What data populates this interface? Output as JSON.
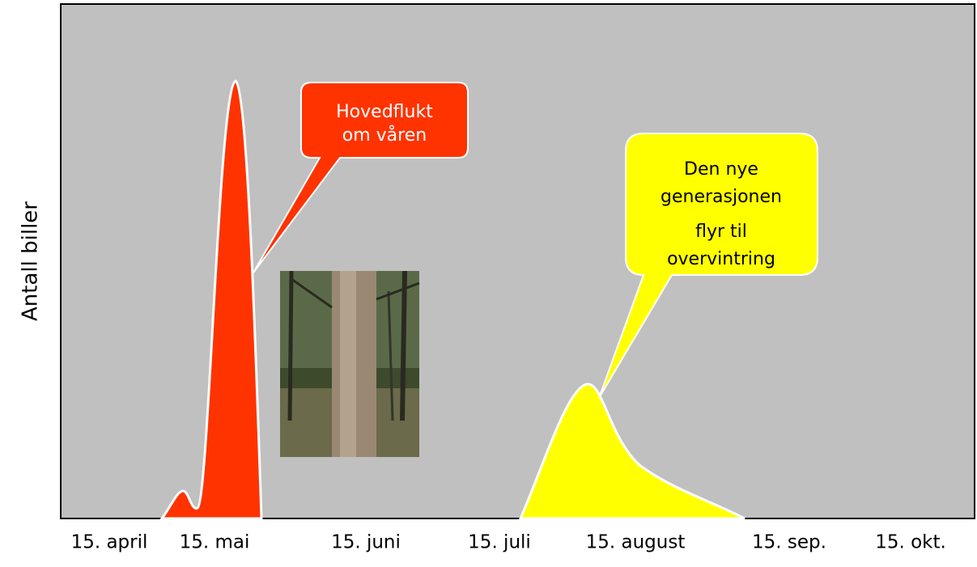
{
  "y_axis_label": "Antall biller",
  "x_labels": [
    "15. april",
    "15. mai",
    "15. juni",
    "15. juli",
    "15. august",
    "15. sep.",
    "15. okt."
  ],
  "callouts": [
    {
      "lines": [
        "Hovedflukt",
        "om våren"
      ]
    },
    {
      "lines": [
        "Den nye",
        "generasjonen",
        "flyr til",
        "overvintring"
      ]
    }
  ]
}
